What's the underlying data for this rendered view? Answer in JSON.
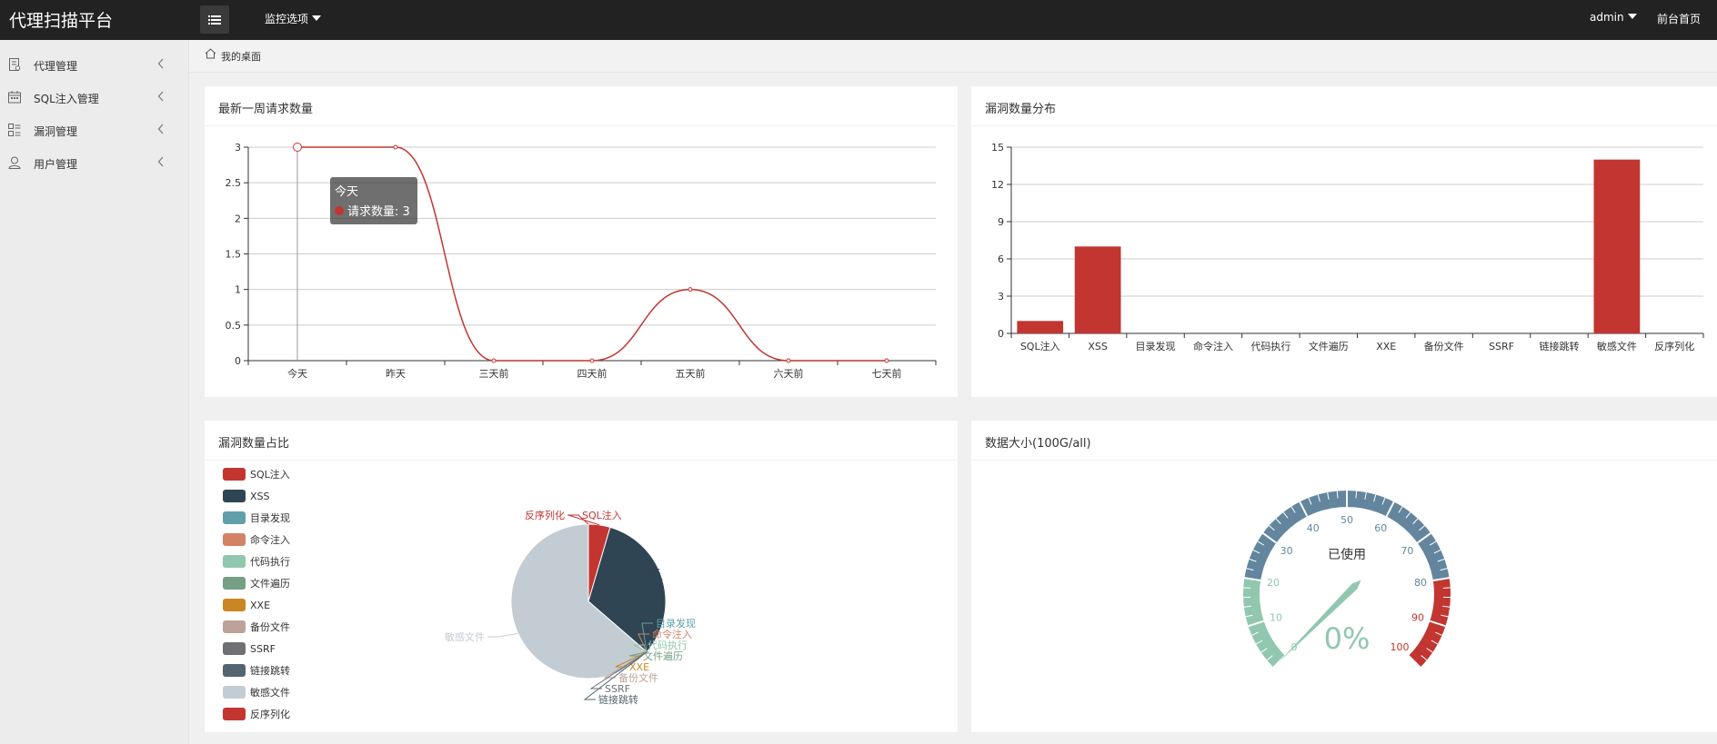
{
  "topbar": {
    "brand": "代理扫描平台",
    "monitor_label": "监控选项",
    "user_label": "admin",
    "home_label": "前台首页"
  },
  "sidebar": {
    "items": [
      {
        "label": "代理管理",
        "icon": "proxy-doc-icon"
      },
      {
        "label": "SQL注入管理",
        "icon": "calendar-icon"
      },
      {
        "label": "漏洞管理",
        "icon": "list-icon"
      },
      {
        "label": "用户管理",
        "icon": "user-icon"
      }
    ]
  },
  "breadcrumb": {
    "label": "我的桌面",
    "icon": "home-icon"
  },
  "panels": {
    "weekly": {
      "title": "最新一周请求数量"
    },
    "vuln_bar": {
      "title": "漏洞数量分布"
    },
    "vuln_pie": {
      "title": "漏洞数量占比"
    },
    "disk": {
      "title": "数据大小(100G/all)"
    }
  },
  "chart_data": [
    {
      "type": "line",
      "title": "最新一周请求数量",
      "categories": [
        "今天",
        "昨天",
        "三天前",
        "四天前",
        "五天前",
        "六天前",
        "七天前"
      ],
      "series": [
        {
          "name": "请求数量",
          "values": [
            3,
            3,
            0,
            0,
            1,
            0,
            0
          ]
        }
      ],
      "yticks": [
        "0",
        "0.5",
        "1",
        "1.5",
        "2",
        "2.5",
        "3"
      ],
      "ylim": [
        0,
        3
      ],
      "grid": true,
      "tooltip": {
        "title": "今天",
        "label": "请求数量: 3"
      },
      "color": "#c23531"
    },
    {
      "type": "bar",
      "title": "漏洞数量分布",
      "categories": [
        "SQL注入",
        "XSS",
        "目录发现",
        "命令注入",
        "代码执行",
        "文件遍历",
        "XXE",
        "备份文件",
        "SSRF",
        "链接跳转",
        "敏感文件",
        "反序列化"
      ],
      "values": [
        1,
        7,
        0,
        0,
        0,
        0,
        0,
        0,
        0,
        0,
        14,
        0
      ],
      "yticks": [
        "0",
        "3",
        "6",
        "9",
        "12",
        "15"
      ],
      "ylim": [
        0,
        15
      ],
      "grid": true,
      "color": "#c23531"
    },
    {
      "type": "pie",
      "title": "漏洞数量占比",
      "legend_position": "left",
      "slices": [
        {
          "label": "SQL注入",
          "value": 1,
          "color": "#c23531"
        },
        {
          "label": "XSS",
          "value": 7,
          "color": "#2f4554"
        },
        {
          "label": "目录发现",
          "value": 0,
          "color": "#61a0a8"
        },
        {
          "label": "命令注入",
          "value": 0,
          "color": "#d48265"
        },
        {
          "label": "代码执行",
          "value": 0,
          "color": "#91c7ae"
        },
        {
          "label": "文件遍历",
          "value": 0,
          "color": "#749f83"
        },
        {
          "label": "XXE",
          "value": 0,
          "color": "#ca8622"
        },
        {
          "label": "备份文件",
          "value": 0,
          "color": "#bda29a"
        },
        {
          "label": "SSRF",
          "value": 0,
          "color": "#6e7074"
        },
        {
          "label": "链接跳转",
          "value": 0,
          "color": "#546570"
        },
        {
          "label": "敏感文件",
          "value": 14,
          "color": "#c4ccd3"
        },
        {
          "label": "反序列化",
          "value": 0,
          "color": "#c23531"
        }
      ]
    },
    {
      "type": "gauge",
      "title": "数据大小(100G/all)",
      "label": "已使用",
      "value": 0,
      "value_text": "0%",
      "min": 0,
      "max": 100,
      "ticks": [
        "0",
        "10",
        "20",
        "30",
        "40",
        "50",
        "60",
        "70",
        "80",
        "90",
        "100"
      ],
      "bands": [
        {
          "to": 0.2,
          "color": "#91c7ae"
        },
        {
          "to": 0.8,
          "color": "#63869e"
        },
        {
          "to": 1.0,
          "color": "#c23531"
        }
      ]
    }
  ]
}
